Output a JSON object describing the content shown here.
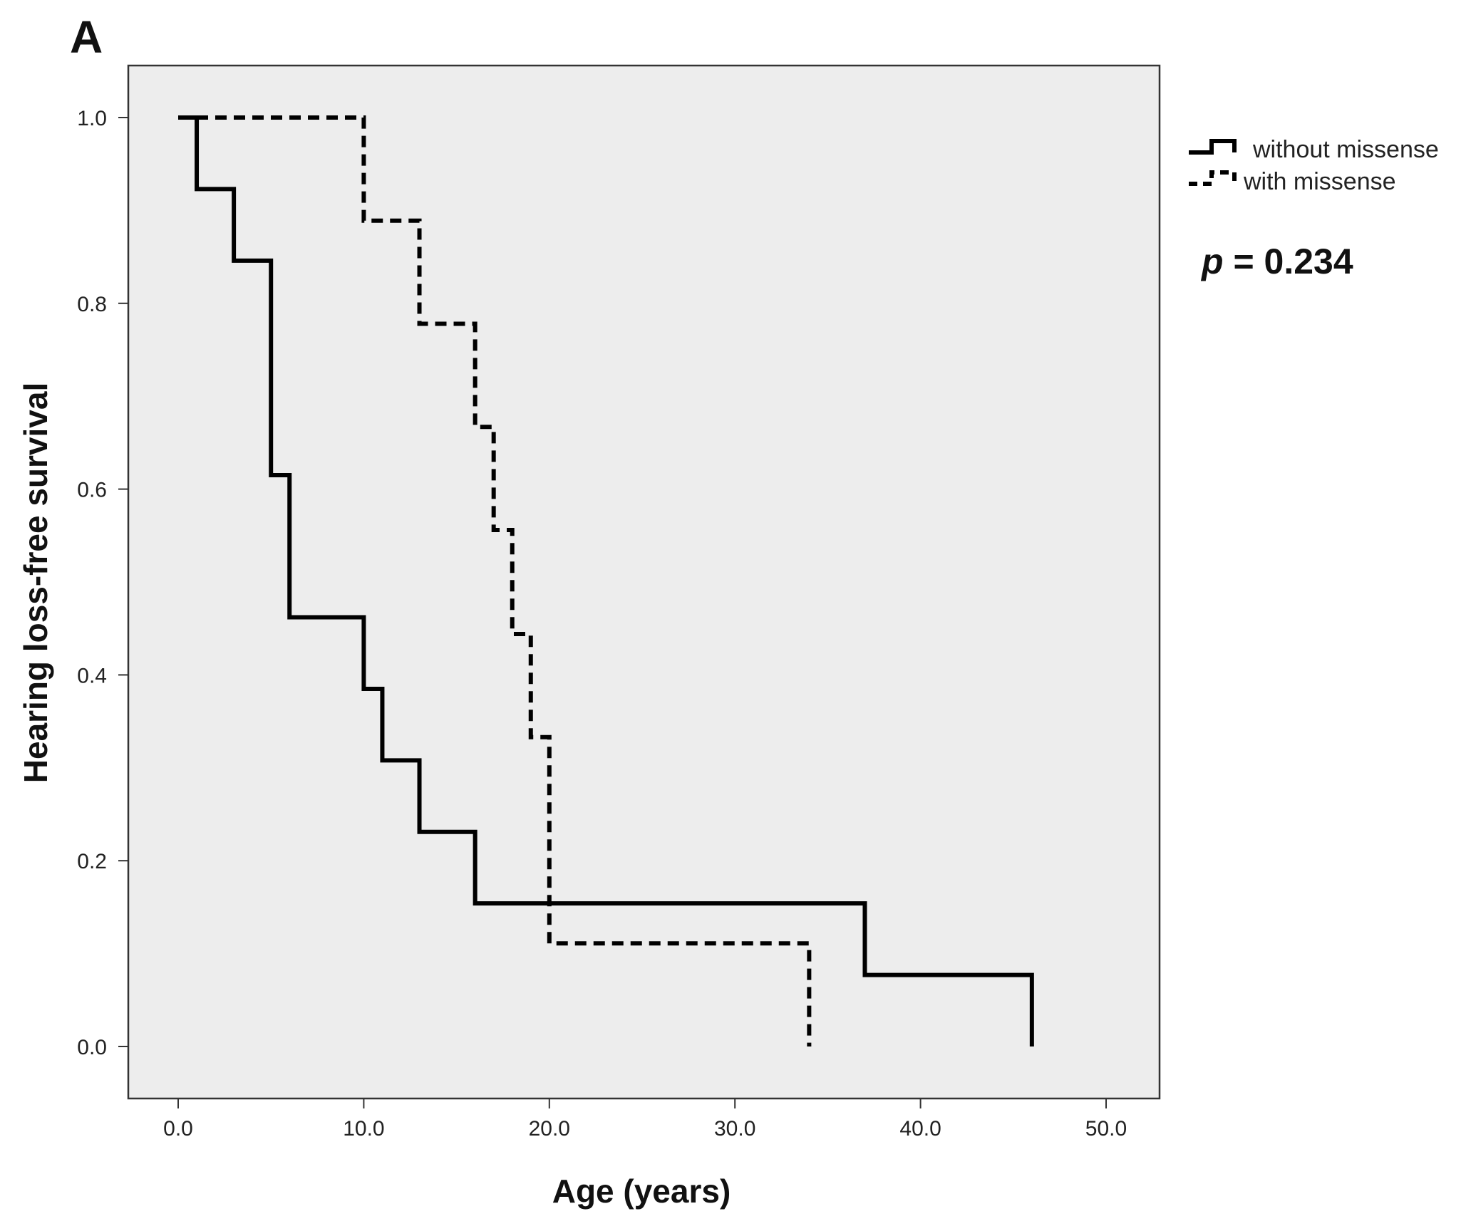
{
  "panel_label": "A",
  "annotation": {
    "p_label": "p",
    "p_text": " = 0.234"
  },
  "chart_data": {
    "type": "line",
    "step": true,
    "xlabel": "Age (years)",
    "ylabel": "Hearing loss-free survival",
    "xlim": [
      0,
      50
    ],
    "ylim": [
      0,
      1
    ],
    "x_ticks": [
      "0.0",
      "10.0",
      "20.0",
      "30.0",
      "40.0",
      "50.0"
    ],
    "y_ticks": [
      "0.0",
      "0.2",
      "0.4",
      "0.6",
      "0.8",
      "1.0"
    ],
    "grid": false,
    "background": "#ededed",
    "legend_position": "top-right (outside plot)",
    "series": [
      {
        "name": "without missense",
        "style": "solid",
        "color": "#000000",
        "x": [
          0,
          1,
          3,
          5,
          6,
          10,
          11,
          13,
          16,
          37,
          46
        ],
        "y": [
          1.0,
          0.923,
          0.846,
          0.615,
          0.462,
          0.385,
          0.308,
          0.231,
          0.154,
          0.077,
          0.0
        ]
      },
      {
        "name": "with missense",
        "style": "dashed",
        "color": "#000000",
        "x": [
          0,
          10,
          13,
          16,
          17,
          18,
          19,
          20,
          34
        ],
        "y": [
          1.0,
          0.889,
          0.778,
          0.667,
          0.556,
          0.444,
          0.333,
          0.111,
          0.0
        ]
      }
    ]
  }
}
